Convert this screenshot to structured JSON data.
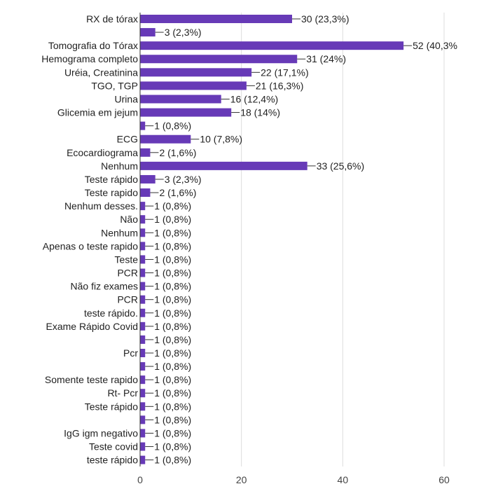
{
  "chart_data": {
    "type": "bar",
    "orientation": "horizontal",
    "title": "",
    "xlabel": "",
    "ylabel": "",
    "xlim": [
      0,
      60
    ],
    "xticks": [
      0,
      20,
      40,
      60
    ],
    "grid": true,
    "bar_color": "#673ab7",
    "categories": [
      "RX de tórax",
      "",
      "Tomografia do Tórax",
      "Hemograma completo",
      "Uréia, Creatinina",
      "TGO, TGP",
      "Urina",
      "Glicemia em jejum",
      "",
      "ECG",
      "Ecocardiograma",
      "Nenhum",
      "Teste rápido",
      "Teste rapido",
      "Nenhum desses.",
      "Não",
      "Nenhum",
      "Apenas o teste rapido",
      "Teste",
      "PCR",
      "Não fiz exames",
      "PCR",
      "teste rápido.",
      "Exame Rápido Covid",
      "",
      "Pcr",
      "",
      "Somente teste rapido",
      "Rt- Pcr",
      "Teste rápido",
      "",
      "IgG igm negativo",
      "Teste covid",
      "teste rápido"
    ],
    "values": [
      30,
      3,
      52,
      31,
      22,
      21,
      16,
      18,
      1,
      10,
      2,
      33,
      3,
      2,
      1,
      1,
      1,
      1,
      1,
      1,
      1,
      1,
      1,
      1,
      1,
      1,
      1,
      1,
      1,
      1,
      1,
      1,
      1,
      1
    ],
    "data_labels": [
      "30 (23,3%)",
      "3 (2,3%)",
      "52 (40,3%",
      "31 (24%)",
      "22 (17,1%)",
      "21 (16,3%)",
      "16 (12,4%)",
      "18 (14%)",
      "1 (0,8%)",
      "10 (7,8%)",
      "2 (1,6%)",
      "33 (25,6%)",
      "3 (2,3%)",
      "2 (1,6%)",
      "1 (0,8%)",
      "1 (0,8%)",
      "1 (0,8%)",
      "1 (0,8%)",
      "1 (0,8%)",
      "1 (0,8%)",
      "1 (0,8%)",
      "1 (0,8%)",
      "1 (0,8%)",
      "1 (0,8%)",
      "1 (0,8%)",
      "1 (0,8%)",
      "1 (0,8%)",
      "1 (0,8%)",
      "1 (0,8%)",
      "1 (0,8%)",
      "1 (0,8%)",
      "1 (0,8%)",
      "1 (0,8%)",
      "1 (0,8%)"
    ]
  }
}
